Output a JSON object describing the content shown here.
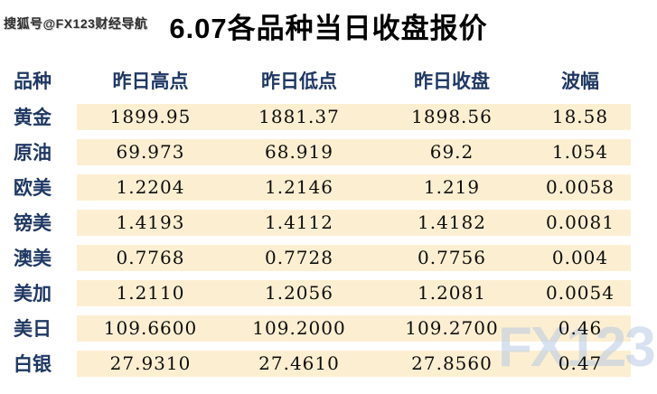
{
  "watermarks": {
    "source_top_left": "搜狐号@FX123财经导航",
    "logo_bottom_right": "FX123"
  },
  "title": "6.07各品种当日收盘报价",
  "colors": {
    "header_and_label_text": "#1F3864",
    "row_band": "#FCEFD1",
    "number_text": "#0d0d0d",
    "logo_watermark": "#B7C8E3",
    "background": "#FFFFFF"
  },
  "chart_data": {
    "type": "table",
    "title": "6.07各品种当日收盘报价",
    "columns": [
      "品种",
      "昨日高点",
      "昨日低点",
      "昨日收盘",
      "波幅"
    ],
    "rows": [
      {
        "label": "黄金",
        "high": "1899.95",
        "low": "1881.37",
        "close": "1898.56",
        "range": "18.58"
      },
      {
        "label": "原油",
        "high": "69.973",
        "low": "68.919",
        "close": "69.2",
        "range": "1.054"
      },
      {
        "label": "欧美",
        "high": "1.2204",
        "low": "1.2146",
        "close": "1.219",
        "range": "0.0058"
      },
      {
        "label": "镑美",
        "high": "1.4193",
        "low": "1.4112",
        "close": "1.4182",
        "range": "0.0081"
      },
      {
        "label": "澳美",
        "high": "0.7768",
        "low": "0.7728",
        "close": "0.7756",
        "range": "0.004"
      },
      {
        "label": "美加",
        "high": "1.2110",
        "low": "1.2056",
        "close": "1.2081",
        "range": "0.0054"
      },
      {
        "label": "美日",
        "high": "109.6600",
        "low": "109.2000",
        "close": "109.2700",
        "range": "0.46"
      },
      {
        "label": "白银",
        "high": "27.9310",
        "low": "27.4610",
        "close": "27.8560",
        "range": "0.47"
      }
    ]
  }
}
